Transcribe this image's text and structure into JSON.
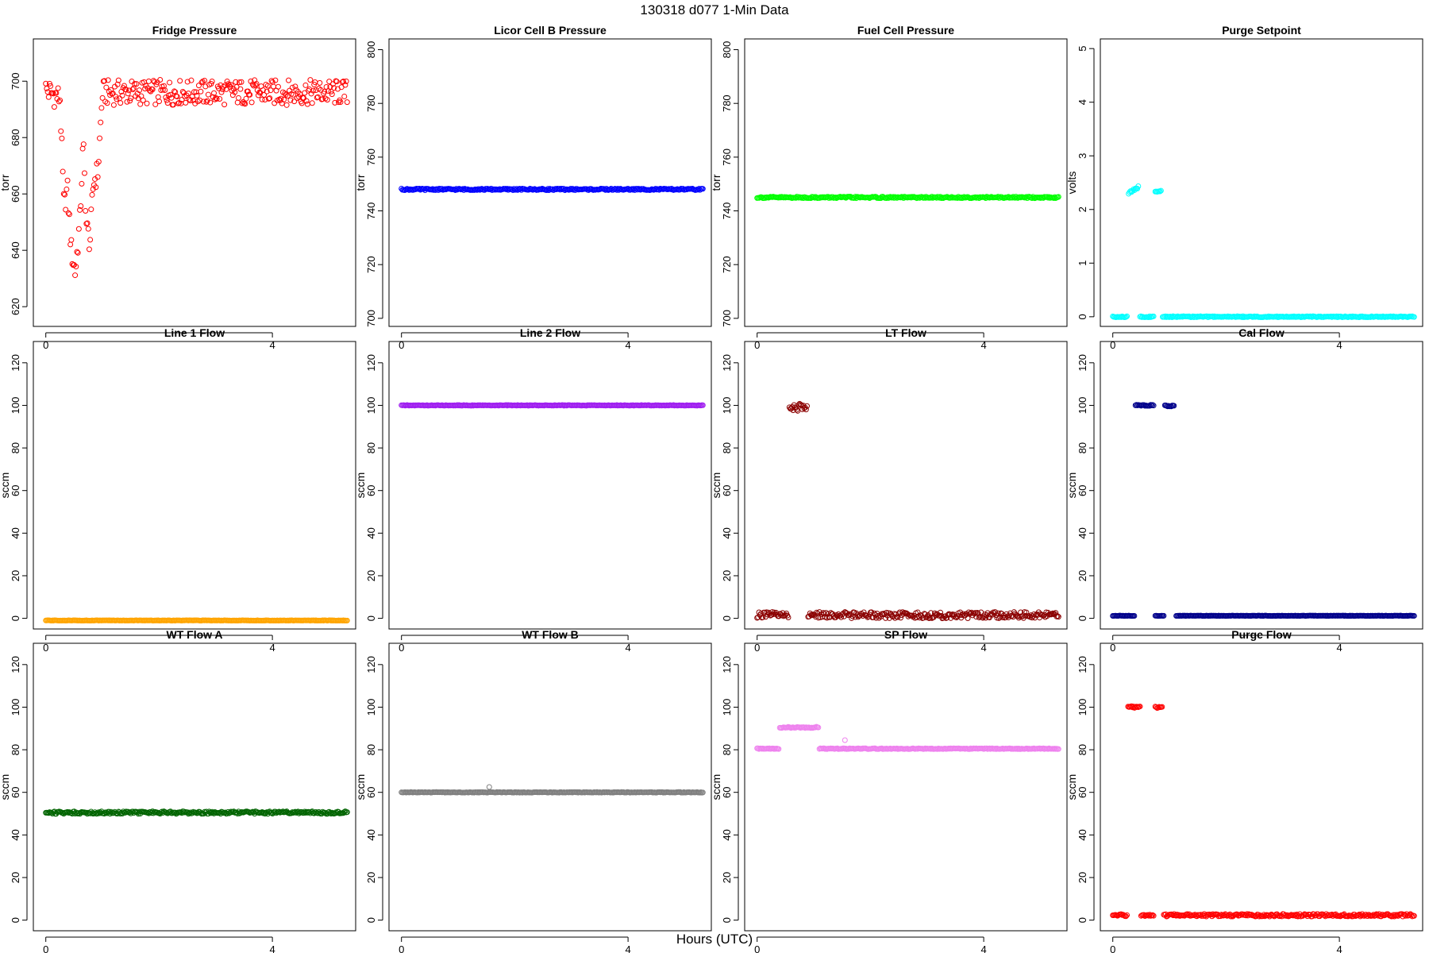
{
  "figure": {
    "title": "130318   d077   1-Min Data",
    "xlabel": "Hours (UTC)"
  },
  "chart_data": [
    {
      "type": "scatter",
      "title": "Fridge Pressure",
      "ylabel": "torr",
      "xlim": [
        -0.22,
        5.47
      ],
      "ylim": [
        613,
        715
      ],
      "yticks": [
        620,
        640,
        660,
        680,
        700
      ],
      "xticks": [
        0,
        4
      ],
      "grid": false,
      "color": "#ff0000",
      "series": [
        {
          "style": "noise",
          "x": [
            0,
            5.32
          ],
          "base": [
            [
              0,
              697
            ],
            [
              0.25,
              694
            ],
            [
              0.32,
              655
            ],
            [
              0.38,
              662
            ],
            [
              0.45,
              640
            ],
            [
              0.52,
              632
            ],
            [
              0.6,
              650
            ],
            [
              0.66,
              678
            ],
            [
              0.72,
              648
            ],
            [
              0.78,
              643
            ],
            [
              0.84,
              664
            ],
            [
              0.92,
              668
            ],
            [
              1.0,
              696
            ],
            [
              5.32,
              696
            ]
          ],
          "amplitude": 4.5
        }
      ]
    },
    {
      "type": "scatter",
      "title": "Licor Cell B Pressure",
      "ylabel": "torr",
      "xlim": [
        -0.22,
        5.47
      ],
      "ylim": [
        697,
        804
      ],
      "yticks": [
        700,
        720,
        740,
        760,
        780,
        800
      ],
      "xticks": [
        0,
        4
      ],
      "grid": false,
      "color": "#0000ff",
      "series": [
        {
          "style": "noise",
          "x": [
            0,
            5.32
          ],
          "base": [
            [
              0,
              748
            ],
            [
              5.32,
              748
            ]
          ],
          "amplitude": 0.3
        }
      ]
    },
    {
      "type": "scatter",
      "title": "Fuel Cell Pressure",
      "ylabel": "torr",
      "xlim": [
        -0.22,
        5.47
      ],
      "ylim": [
        697,
        804
      ],
      "yticks": [
        700,
        720,
        740,
        760,
        780,
        800
      ],
      "xticks": [
        0,
        4
      ],
      "grid": false,
      "color": "#00ff00",
      "series": [
        {
          "style": "noise",
          "x": [
            0,
            5.32
          ],
          "base": [
            [
              0,
              745
            ],
            [
              5.32,
              745
            ]
          ],
          "amplitude": 0.3
        }
      ]
    },
    {
      "type": "scatter",
      "title": "Purge Setpoint",
      "ylabel": "volts",
      "xlim": [
        -0.22,
        5.47
      ],
      "ylim": [
        -0.18,
        5.18
      ],
      "yticks": [
        0,
        1,
        2,
        3,
        4,
        5
      ],
      "xticks": [
        0,
        4
      ],
      "grid": false,
      "color": "#00ffff",
      "series": [
        {
          "style": "noise",
          "x": [
            0,
            0.25
          ],
          "base": [
            [
              0,
              0
            ],
            [
              0.25,
              0
            ]
          ],
          "amplitude": 0.01
        },
        {
          "style": "noise",
          "x": [
            0.28,
            0.45
          ],
          "base": [
            [
              0.28,
              2.3
            ],
            [
              0.45,
              2.42
            ]
          ],
          "amplitude": 0.02
        },
        {
          "style": "noise",
          "x": [
            0.48,
            0.72
          ],
          "base": [
            [
              0.48,
              0
            ],
            [
              0.72,
              0
            ]
          ],
          "amplitude": 0.01
        },
        {
          "style": "noise",
          "x": [
            0.75,
            0.85
          ],
          "base": [
            [
              0.75,
              2.33
            ],
            [
              0.85,
              2.36
            ]
          ],
          "amplitude": 0.02
        },
        {
          "style": "noise",
          "x": [
            0.88,
            5.32
          ],
          "base": [
            [
              0.88,
              0
            ],
            [
              5.32,
              0
            ]
          ],
          "amplitude": 0.01
        }
      ]
    },
    {
      "type": "scatter",
      "title": "Line 1 Flow",
      "ylabel": "sccm",
      "xlim": [
        -0.22,
        5.47
      ],
      "ylim": [
        -5,
        130
      ],
      "yticks": [
        0,
        20,
        40,
        60,
        80,
        100,
        120
      ],
      "xticks": [
        0,
        4
      ],
      "grid": false,
      "color": "#ffa500",
      "series": [
        {
          "style": "noise",
          "x": [
            0,
            5.32
          ],
          "base": [
            [
              0,
              -1
            ],
            [
              5.32,
              -1
            ]
          ],
          "amplitude": 0.1
        }
      ]
    },
    {
      "type": "scatter",
      "title": "Line 2 Flow",
      "ylabel": "sccm",
      "xlim": [
        -0.22,
        5.47
      ],
      "ylim": [
        -5,
        130
      ],
      "yticks": [
        0,
        20,
        40,
        60,
        80,
        100,
        120
      ],
      "xticks": [
        0,
        4
      ],
      "grid": false,
      "color": "#a020f0",
      "series": [
        {
          "style": "noise",
          "x": [
            0,
            5.32
          ],
          "base": [
            [
              0,
              100
            ],
            [
              5.32,
              100
            ]
          ],
          "amplitude": 0.15
        }
      ]
    },
    {
      "type": "scatter",
      "title": "LT Flow",
      "ylabel": "sccm",
      "xlim": [
        -0.22,
        5.47
      ],
      "ylim": [
        -5,
        130
      ],
      "yticks": [
        0,
        20,
        40,
        60,
        80,
        100,
        120
      ],
      "xticks": [
        0,
        4
      ],
      "grid": false,
      "color": "#8b0000",
      "series": [
        {
          "style": "noise",
          "x": [
            0,
            0.55
          ],
          "base": [
            [
              0,
              1.5
            ],
            [
              0.55,
              1.5
            ]
          ],
          "amplitude": 1.5
        },
        {
          "style": "noise",
          "x": [
            0.57,
            0.88
          ],
          "base": [
            [
              0.57,
              99
            ],
            [
              0.88,
              99
            ]
          ],
          "amplitude": 1.8
        },
        {
          "style": "noise",
          "x": [
            0.9,
            5.32
          ],
          "base": [
            [
              0.9,
              1.5
            ],
            [
              5.32,
              1.5
            ]
          ],
          "amplitude": 1.5
        }
      ]
    },
    {
      "type": "scatter",
      "title": "Cal Flow",
      "ylabel": "sccm",
      "xlim": [
        -0.22,
        5.47
      ],
      "ylim": [
        -5,
        130
      ],
      "yticks": [
        0,
        20,
        40,
        60,
        80,
        100,
        120
      ],
      "xticks": [
        0,
        4
      ],
      "grid": false,
      "color": "#00008b",
      "series": [
        {
          "style": "noise",
          "x": [
            0,
            0.38
          ],
          "base": [
            [
              0,
              1.2
            ],
            [
              0.38,
              1.2
            ]
          ],
          "amplitude": 0.1
        },
        {
          "style": "noise",
          "x": [
            0.4,
            0.72
          ],
          "base": [
            [
              0.4,
              100
            ],
            [
              0.72,
              100
            ]
          ],
          "amplitude": 0.3
        },
        {
          "style": "noise",
          "x": [
            0.75,
            0.9
          ],
          "base": [
            [
              0.75,
              1.2
            ],
            [
              0.9,
              1.2
            ]
          ],
          "amplitude": 0.1
        },
        {
          "style": "noise",
          "x": [
            0.92,
            1.08
          ],
          "base": [
            [
              0.92,
              99.8
            ],
            [
              1.08,
              99.8
            ]
          ],
          "amplitude": 0.3
        },
        {
          "style": "noise",
          "x": [
            1.12,
            5.32
          ],
          "base": [
            [
              1.12,
              1.2
            ],
            [
              5.32,
              1.2
            ]
          ],
          "amplitude": 0.1
        }
      ]
    },
    {
      "type": "scatter",
      "title": "WT Flow A",
      "ylabel": "sccm",
      "xlim": [
        -0.22,
        5.47
      ],
      "ylim": [
        -5,
        130
      ],
      "yticks": [
        0,
        20,
        40,
        60,
        80,
        100,
        120
      ],
      "xticks": [
        0,
        4
      ],
      "grid": false,
      "color": "#006400",
      "series": [
        {
          "style": "noise",
          "x": [
            0,
            5.32
          ],
          "base": [
            [
              0,
              50.5
            ],
            [
              5.32,
              50.5
            ]
          ],
          "amplitude": 0.6
        }
      ]
    },
    {
      "type": "scatter",
      "title": "WT Flow B",
      "ylabel": "sccm",
      "xlim": [
        -0.22,
        5.47
      ],
      "ylim": [
        -5,
        130
      ],
      "yticks": [
        0,
        20,
        40,
        60,
        80,
        100,
        120
      ],
      "xticks": [
        0,
        4
      ],
      "grid": false,
      "color": "#808080",
      "series": [
        {
          "style": "noise",
          "x": [
            0,
            5.32
          ],
          "base": [
            [
              0,
              60
            ],
            [
              5.32,
              60
            ]
          ],
          "amplitude": 0.15
        },
        {
          "style": "points",
          "x": [
            1.55
          ],
          "y": [
            62.5
          ]
        }
      ]
    },
    {
      "type": "scatter",
      "title": "SP Flow",
      "ylabel": "sccm",
      "xlim": [
        -0.22,
        5.47
      ],
      "ylim": [
        -5,
        130
      ],
      "yticks": [
        0,
        20,
        40,
        60,
        80,
        100,
        120
      ],
      "xticks": [
        0,
        4
      ],
      "grid": false,
      "color": "#ee82ee",
      "series": [
        {
          "style": "noise",
          "x": [
            0,
            0.38
          ],
          "base": [
            [
              0,
              80.5
            ],
            [
              0.38,
              80.5
            ]
          ],
          "amplitude": 0.2
        },
        {
          "style": "noise",
          "x": [
            0.4,
            1.08
          ],
          "base": [
            [
              0.4,
              90.5
            ],
            [
              1.08,
              90.5
            ]
          ],
          "amplitude": 0.3
        },
        {
          "style": "noise",
          "x": [
            1.1,
            5.32
          ],
          "base": [
            [
              1.1,
              80.5
            ],
            [
              5.32,
              80.5
            ]
          ],
          "amplitude": 0.2
        },
        {
          "style": "points",
          "x": [
            1.55
          ],
          "y": [
            84.5
          ]
        }
      ]
    },
    {
      "type": "scatter",
      "title": "Purge Flow",
      "ylabel": "sccm",
      "xlim": [
        -0.22,
        5.47
      ],
      "ylim": [
        -5,
        130
      ],
      "yticks": [
        0,
        20,
        40,
        60,
        80,
        100,
        120
      ],
      "xticks": [
        0,
        4
      ],
      "grid": false,
      "color": "#ff0000",
      "series": [
        {
          "style": "noise",
          "x": [
            0,
            0.25
          ],
          "base": [
            [
              0,
              2.3
            ],
            [
              0.25,
              2.3
            ]
          ],
          "amplitude": 0.5
        },
        {
          "style": "noise",
          "x": [
            0.27,
            0.48
          ],
          "base": [
            [
              0.27,
              100
            ],
            [
              0.48,
              100
            ]
          ],
          "amplitude": 0.5
        },
        {
          "style": "noise",
          "x": [
            0.5,
            0.72
          ],
          "base": [
            [
              0.5,
              2.3
            ],
            [
              0.72,
              2.3
            ]
          ],
          "amplitude": 0.5
        },
        {
          "style": "noise",
          "x": [
            0.75,
            0.87
          ],
          "base": [
            [
              0.75,
              100
            ],
            [
              0.87,
              100
            ]
          ],
          "amplitude": 0.5
        },
        {
          "style": "noise",
          "x": [
            0.9,
            5.32
          ],
          "base": [
            [
              0.9,
              2.3
            ],
            [
              5.32,
              2.3
            ]
          ],
          "amplitude": 0.6
        }
      ]
    }
  ]
}
